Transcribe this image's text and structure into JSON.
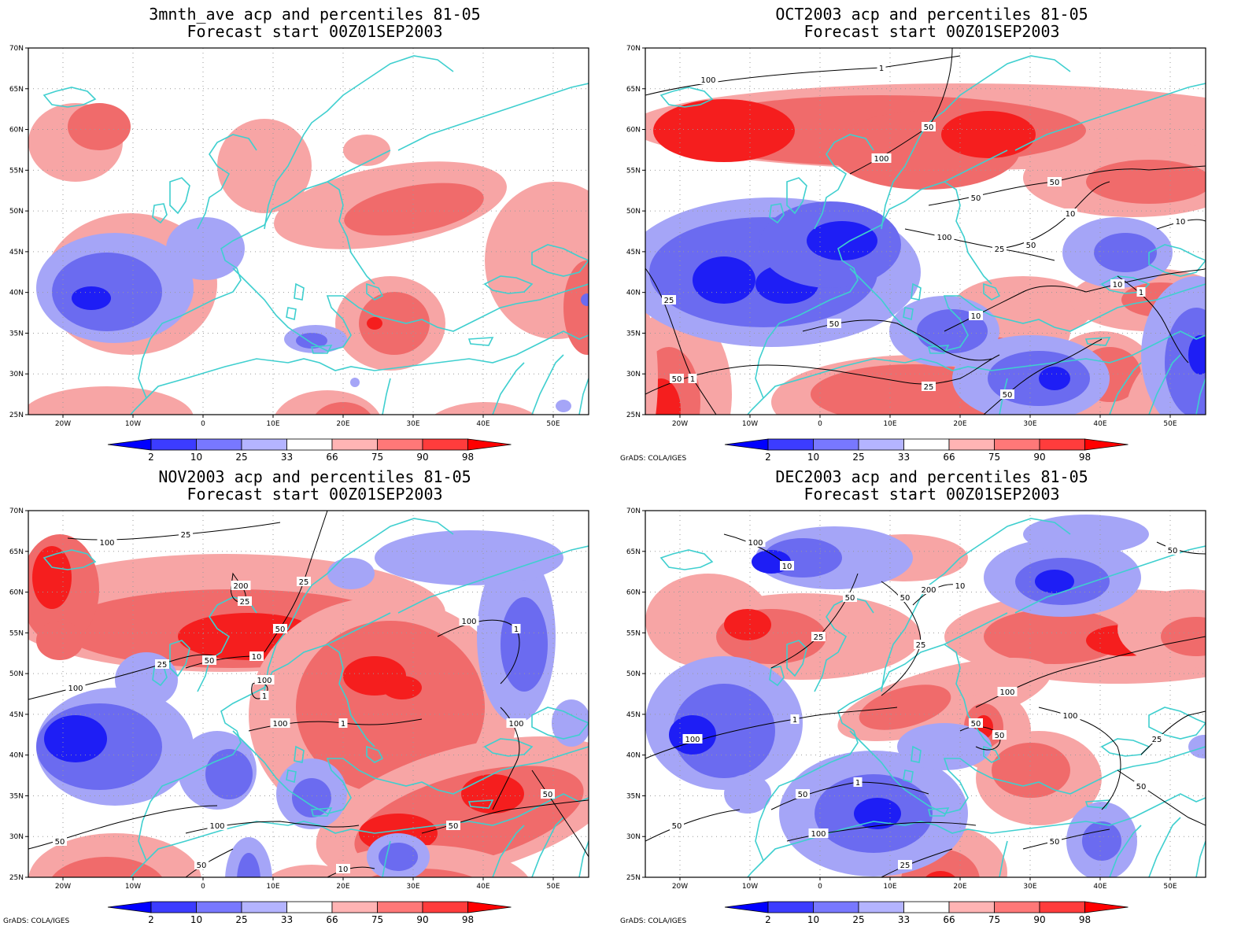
{
  "panels": [
    {
      "id": "p1",
      "title_line1": "3mnth_ave acp and percentiles 81-05",
      "title_line2": "Forecast start 00Z01SEP2003",
      "credit": "",
      "contours": []
    },
    {
      "id": "p2",
      "title_line1": "OCT2003 acp and percentiles 81-05",
      "title_line2": "Forecast start 00Z01SEP2003",
      "credit": "GrADS: COLA/IGES",
      "contours": [
        "100",
        "100",
        "50",
        "100",
        "50",
        "25",
        "50",
        "10",
        "50",
        "25",
        "50",
        "10",
        "1",
        "10",
        "1",
        "50",
        "50",
        "25",
        "10",
        "1"
      ]
    },
    {
      "id": "p3",
      "title_line1": "NOV2003 acp and percentiles 81-05",
      "title_line2": "Forecast start 00Z01SEP2003",
      "credit": "GrADS: COLA/IGES",
      "contours": [
        "100",
        "200",
        "50",
        "50",
        "100",
        "100",
        "100",
        "100",
        "100",
        "50",
        "100",
        "50",
        "50",
        "50",
        "10",
        "25",
        "25",
        "25",
        "10",
        "25",
        "1",
        "1",
        "1"
      ]
    },
    {
      "id": "p4",
      "title_line1": "DEC2003 acp and percentiles 81-05",
      "title_line2": "Forecast start 00Z01SEP2003",
      "credit": "GrADS: COLA/IGES",
      "contours": [
        "100",
        "50",
        "50",
        "200",
        "100",
        "50",
        "50",
        "100",
        "100",
        "50",
        "50",
        "100",
        "25",
        "50",
        "25",
        "50",
        "10",
        "25",
        "25",
        "10",
        "1",
        "1",
        "50"
      ]
    }
  ],
  "axes": {
    "lat_labels": [
      "70N",
      "65N",
      "60N",
      "55N",
      "50N",
      "45N",
      "40N",
      "35N",
      "30N",
      "25N"
    ],
    "lon_labels": [
      "20W",
      "10W",
      "0",
      "10E",
      "20E",
      "30E",
      "40E",
      "50E"
    ]
  },
  "colorbar": {
    "labels": [
      "2",
      "10",
      "25",
      "33",
      "66",
      "75",
      "90",
      "98"
    ],
    "colors": [
      "#0000ff",
      "#3c3cff",
      "#7878ff",
      "#b4b4ff",
      "#ffffff",
      "#ffb4b4",
      "#ff7878",
      "#ff3c3c",
      "#ff0000"
    ]
  },
  "colors": {
    "coast": "#3fcfcf",
    "contour": "#000000",
    "grid": "#9a9a9a",
    "blue_light": "#a5a5f7",
    "blue_mid": "#6b6bf0",
    "blue_dark": "#1e1ef5",
    "red_light": "#f7a5a5",
    "red_mid": "#f06b6b",
    "red_dark": "#f51e1e"
  }
}
